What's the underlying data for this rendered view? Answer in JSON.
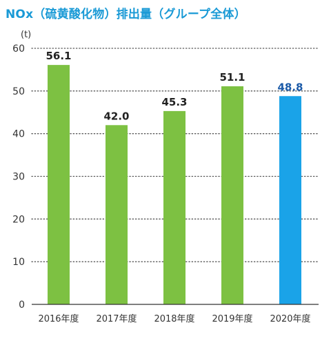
{
  "chart_data": {
    "type": "bar",
    "title": "NOx（硫黄酸化物）排出量（グループ全体）",
    "unit": "(t)",
    "categories": [
      "2016年度",
      "2017年度",
      "2018年度",
      "2019年度",
      "2020年度"
    ],
    "values": [
      56.1,
      42.0,
      45.3,
      51.1,
      48.8
    ],
    "value_labels": [
      "56.1",
      "42.0",
      "45.3",
      "51.1",
      "48.8"
    ],
    "yticks": [
      "0",
      "10",
      "20",
      "30",
      "40",
      "50",
      "60"
    ],
    "ylim": [
      0,
      60
    ],
    "grid": true,
    "colors": {
      "title": "#1a9ad6",
      "bar": "#7dc142",
      "highlight_bar": "#1aa3e8",
      "highlight_label": "#1b5aa8",
      "label": "#222222",
      "axis": "#333333",
      "grid": "#555555"
    }
  }
}
